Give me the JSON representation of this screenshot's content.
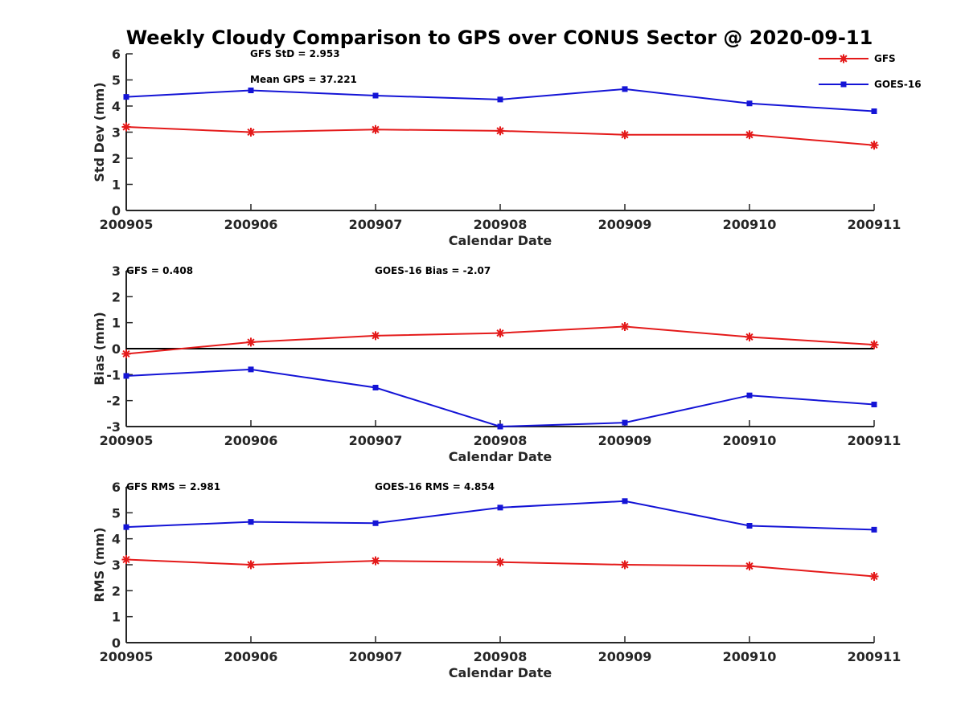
{
  "title": "Weekly Cloudy Comparison to GPS over CONUS Sector @ 2020-09-11",
  "colors": {
    "GFS": "#e41a1a",
    "GOES-16": "#1414d6",
    "axis": "#262626",
    "zero_line": "#000000"
  },
  "legend": {
    "placement": "top-right",
    "entries": [
      "GFS",
      "GOES-16"
    ]
  },
  "chart_data": [
    {
      "type": "line",
      "ylabel": "Std Dev (mm)",
      "xlabel": "Calendar Date",
      "categories": [
        "200905",
        "200906",
        "200907",
        "200908",
        "200909",
        "200910",
        "200911"
      ],
      "ylim": [
        0,
        6
      ],
      "yticks": [
        "0",
        "1",
        "2",
        "3",
        "4",
        "5",
        "6"
      ],
      "series": [
        {
          "name": "GFS",
          "marker": "star",
          "values": [
            3.2,
            3.0,
            3.1,
            3.05,
            2.9,
            2.9,
            2.5
          ]
        },
        {
          "name": "GOES-16",
          "marker": "square",
          "values": [
            4.35,
            4.6,
            4.4,
            4.25,
            4.65,
            4.1,
            3.8
          ]
        }
      ],
      "annotations": [
        "GFS StD = 2.953",
        "Mean GPS = 37.221"
      ]
    },
    {
      "type": "line",
      "ylabel": "Bias (mm)",
      "xlabel": "Calendar Date",
      "categories": [
        "200905",
        "200906",
        "200907",
        "200908",
        "200909",
        "200910",
        "200911"
      ],
      "ylim": [
        -3,
        3
      ],
      "yticks": [
        "-3",
        "-2",
        "-1",
        "0",
        "1",
        "2",
        "3"
      ],
      "zero_line": true,
      "series": [
        {
          "name": "GFS",
          "marker": "star",
          "values": [
            -0.2,
            0.25,
            0.5,
            0.6,
            0.85,
            0.45,
            0.15
          ]
        },
        {
          "name": "GOES-16",
          "marker": "square",
          "values": [
            -1.05,
            -0.8,
            -1.5,
            -3.0,
            -2.85,
            -1.8,
            -2.15
          ]
        }
      ],
      "annotations": [
        "GFS = 0.408",
        "GOES-16 Bias  = -2.07"
      ]
    },
    {
      "type": "line",
      "ylabel": "RMS (mm)",
      "xlabel": "Calendar Date",
      "categories": [
        "200905",
        "200906",
        "200907",
        "200908",
        "200909",
        "200910",
        "200911"
      ],
      "ylim": [
        0,
        6
      ],
      "yticks": [
        "0",
        "1",
        "2",
        "3",
        "4",
        "5",
        "6"
      ],
      "series": [
        {
          "name": "GFS",
          "marker": "star",
          "values": [
            3.2,
            3.0,
            3.15,
            3.1,
            3.0,
            2.95,
            2.55
          ]
        },
        {
          "name": "GOES-16",
          "marker": "square",
          "values": [
            4.45,
            4.65,
            4.6,
            5.2,
            5.45,
            4.5,
            4.35
          ]
        }
      ],
      "annotations": [
        "GFS RMS = 2.981",
        "GOES-16 RMS = 4.854"
      ]
    }
  ]
}
